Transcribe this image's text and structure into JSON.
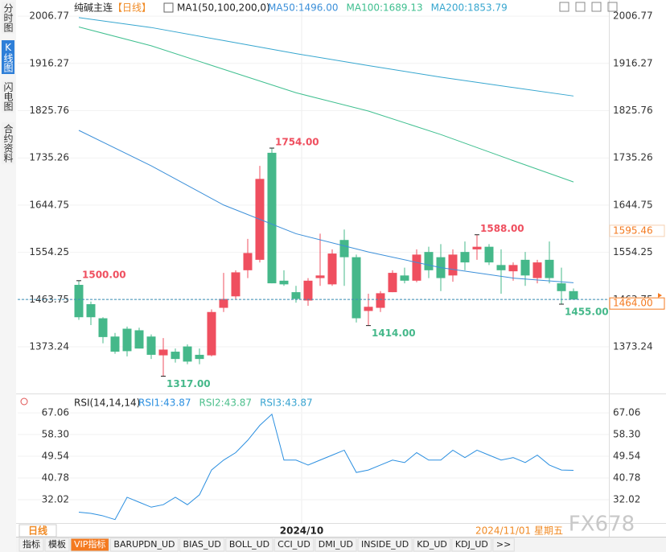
{
  "chart_data": [
    {
      "type": "candlestick",
      "title": "纯碱主连",
      "period": "【日线】",
      "indicator": "MA1(50,100,200,0)",
      "categories": [
        null,
        null,
        null,
        null,
        null,
        null,
        null,
        null,
        null,
        null,
        null,
        null,
        null,
        null,
        null,
        null,
        null,
        null,
        "2024/10",
        null,
        null,
        null,
        null,
        null,
        null,
        null,
        null,
        null,
        null,
        null,
        null,
        null,
        null,
        null,
        null,
        null,
        null,
        null,
        null,
        null,
        null,
        null
      ],
      "open": [
        1492,
        1455,
        1428,
        1393,
        1408,
        1405,
        1393,
        1357,
        1364,
        1374,
        1358,
        1357,
        1448,
        1470,
        1520,
        1540,
        1745,
        1500,
        1478,
        1462,
        1505,
        1493,
        1578,
        1545,
        1442,
        1448,
        1478,
        1510,
        1500,
        1555,
        1545,
        1510,
        1555,
        1560,
        1565,
        1530,
        1518,
        1540,
        1505,
        1540,
        1495,
        1480
      ],
      "high": [
        1500,
        1460,
        1430,
        1400,
        1412,
        1410,
        1397,
        1390,
        1370,
        1378,
        1370,
        1445,
        1515,
        1520,
        1580,
        1720,
        1754,
        1520,
        1490,
        1505,
        1590,
        1560,
        1598,
        1550,
        1475,
        1480,
        1520,
        1525,
        1560,
        1565,
        1570,
        1560,
        1575,
        1588,
        1570,
        1560,
        1535,
        1555,
        1540,
        1575,
        1525,
        1485
      ],
      "low": [
        1425,
        1415,
        1380,
        1360,
        1355,
        1370,
        1350,
        1317,
        1343,
        1340,
        1340,
        1355,
        1440,
        1465,
        1505,
        1535,
        1495,
        1490,
        1458,
        1452,
        1490,
        1490,
        1490,
        1420,
        1414,
        1440,
        1478,
        1495,
        1497,
        1505,
        1480,
        1498,
        1520,
        1540,
        1530,
        1475,
        1500,
        1490,
        1495,
        1495,
        1455,
        1464
      ],
      "close": [
        1430,
        1430,
        1392,
        1364,
        1365,
        1370,
        1358,
        1368,
        1350,
        1345,
        1350,
        1440,
        1465,
        1516,
        1553,
        1695,
        1495,
        1493,
        1465,
        1500,
        1510,
        1552,
        1545,
        1428,
        1450,
        1476,
        1515,
        1500,
        1550,
        1520,
        1505,
        1550,
        1535,
        1565,
        1535,
        1520,
        1530,
        1510,
        1535,
        1505,
        1480,
        1464
      ],
      "up_color": "#ef4f5f",
      "down_color": "#45b88a",
      "lines": [
        {
          "name": "MA50:1496.00",
          "color": "#3b8fd9",
          "x": [
            0,
            6,
            12,
            18,
            24,
            30,
            36,
            41
          ],
          "values": [
            1788,
            1720,
            1645,
            1590,
            1555,
            1525,
            1505,
            1496
          ]
        },
        {
          "name": "MA100:1689.13",
          "color": "#3fbf8f",
          "x": [
            0,
            6,
            12,
            18,
            24,
            30,
            36,
            41
          ],
          "values": [
            1986,
            1950,
            1905,
            1860,
            1825,
            1780,
            1730,
            1689.13
          ]
        },
        {
          "name": "MA200:1853.79",
          "color": "#36a6cf",
          "x": [
            0,
            6,
            12,
            18,
            24,
            30,
            36,
            41
          ],
          "values": [
            2004,
            1985,
            1960,
            1935,
            1912,
            1890,
            1870,
            1853.79
          ]
        }
      ],
      "annotations": [
        {
          "value": 1754,
          "label": "1754.00"
        },
        {
          "value": 1500,
          "label": "1500.00"
        },
        {
          "value": 1317,
          "label": "1317.00"
        },
        {
          "value": 1414,
          "label": "1414.00"
        },
        {
          "value": 1588,
          "label": "1588.00"
        },
        {
          "value": 1455,
          "label": "1455.00"
        }
      ],
      "last_price": {
        "value": 1464,
        "label": "1464.00"
      },
      "marker_price": 1595.46,
      "ylim": [
        1287,
        2030
      ],
      "yticks": [
        2006.77,
        1916.27,
        1825.76,
        1735.26,
        1644.75,
        1554.25,
        1463.75,
        1373.24
      ],
      "grid": true
    },
    {
      "type": "line",
      "title": "RSI(14,14,14)",
      "series": [
        {
          "name": "RSI1:43.87",
          "color": "#2b8fe0",
          "values": [
            27,
            26.5,
            25.5,
            24,
            33,
            31,
            29,
            30,
            33,
            30,
            34,
            44,
            48,
            51,
            56,
            62,
            66.5,
            48,
            48,
            46,
            48,
            50,
            52,
            43,
            44,
            46,
            48,
            47,
            51,
            48,
            48,
            52,
            49,
            52,
            50,
            48,
            49,
            47,
            50,
            46,
            44,
            43.87
          ]
        }
      ],
      "other_labels": [
        {
          "text": "RSI2:43.87",
          "color": "#4cbf8c"
        },
        {
          "text": "RSI3:43.87",
          "color": "#37a3d0"
        }
      ],
      "ylim": [
        22.6,
        73.9
      ],
      "yticks": [
        67.06,
        {
          "value": 58.3,
          "label": "58.30"
        },
        49.54,
        40.78,
        32.02
      ],
      "grid": true
    }
  ],
  "ui": {
    "side_tabs": [
      "分时图",
      "K线图",
      "闪电图",
      "合约资料"
    ],
    "period_tab": "日线",
    "date": "2024/11/01 星期五",
    "watermark": "FX678",
    "toolbar": [
      "指标",
      "模板",
      "VIP指标",
      "BARUPDN_UD",
      "BIAS_UD",
      "BOLL_UD",
      "CCI_UD",
      "DMI_UD",
      "INSIDE_UD",
      "KD_UD",
      "KDJ_UD",
      ">>"
    ]
  }
}
